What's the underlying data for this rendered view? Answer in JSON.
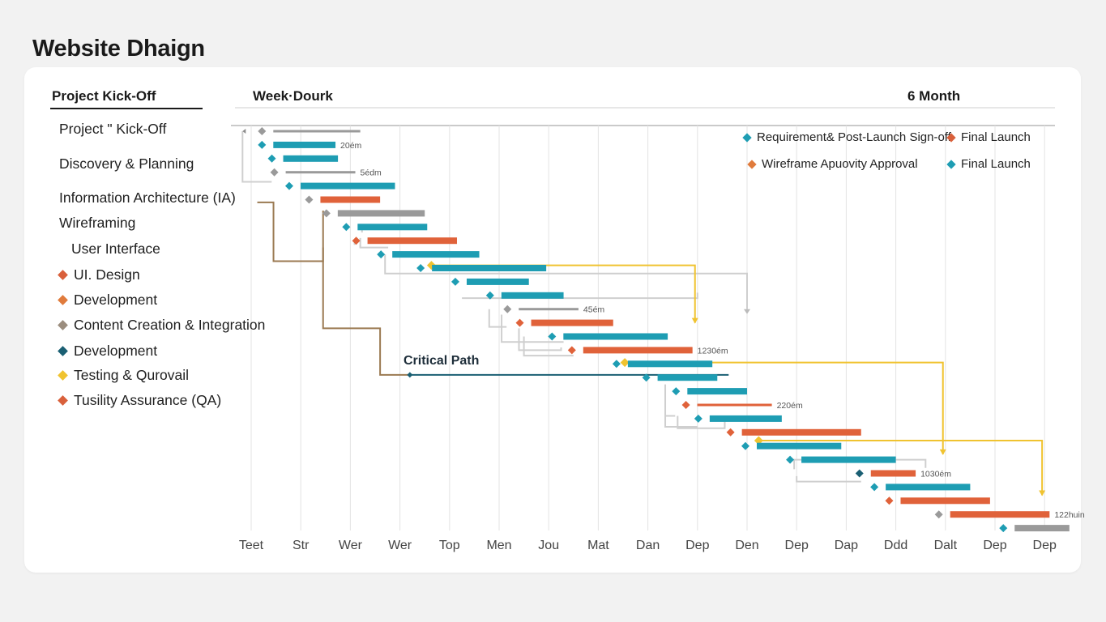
{
  "page": {
    "title": "Website Dhaign"
  },
  "panel": {
    "left_header": "Project Kick-Off",
    "col_header_left": "Week·Dourk",
    "col_header_right": "6 Month",
    "critical_path_label": "Critical Path"
  },
  "tasks": [
    {
      "label": "Project \" Kick-Off",
      "marker": null
    },
    {
      "label": "Discovery & Planning",
      "marker": null
    },
    {
      "label": "Information Architecture (IA)",
      "marker": null
    },
    {
      "label": "Wireframing",
      "marker": null
    },
    {
      "label": "User Interface",
      "marker": null
    },
    {
      "label": "UI. Design",
      "marker": "#d9603b"
    },
    {
      "label": "Development",
      "marker": "#e07b3c"
    },
    {
      "label": "Content Creation & Integration",
      "marker": "#9b8d7e"
    },
    {
      "label": "Development",
      "marker": "#1a5f73"
    },
    {
      "label": "Testing & Qurovail",
      "marker": "#f0c330"
    },
    {
      "label": "Tusility Assurance (QA)",
      "marker": "#d9603b"
    }
  ],
  "legend": [
    {
      "label": "Requirement& Post-Launch Sign-off",
      "color": "#1e9db3"
    },
    {
      "label": "Final Launch",
      "color": "#d9603b"
    },
    {
      "label": "Wireframe Apuovity Approval",
      "color": "#e07b3c"
    },
    {
      "label": "Final Launch",
      "color": "#1e9db3"
    }
  ],
  "colors": {
    "teal": "#1e9db3",
    "orange": "#e0623a",
    "gray": "#9a9a9a",
    "dark_teal": "#1a5f73",
    "yellow": "#f0c330",
    "brown": "#9b7a52"
  },
  "chart_data": {
    "type": "gantt",
    "title": "Website Dhaign",
    "x_unit": "week",
    "x_range": [
      0,
      17
    ],
    "x_tick_labels": [
      "Teet",
      "Str",
      "Wer",
      "Wer",
      "Top",
      "Men",
      "Jou",
      "Mat",
      "Dan",
      "Dep",
      "Den",
      "Dep",
      "Dap",
      "Ddd",
      "Dalt",
      "Dep",
      "Dep"
    ],
    "tasks": [
      {
        "start": 0.25,
        "end": 2.2,
        "color": "gray",
        "marker": "gray",
        "end_label": ""
      },
      {
        "start": 0.25,
        "end": 1.7,
        "color": "teal",
        "marker": "teal",
        "end_label": "20ém"
      },
      {
        "start": 0.45,
        "end": 1.75,
        "color": "teal",
        "marker": "teal",
        "end_label": ""
      },
      {
        "start": 0.5,
        "end": 2.1,
        "color": "gray",
        "marker": "gray",
        "end_label": "5édm"
      },
      {
        "start": 0.8,
        "end": 2.9,
        "color": "teal",
        "marker": "teal",
        "end_label": ""
      },
      {
        "start": 1.2,
        "end": 2.6,
        "color": "orange",
        "marker": "gray",
        "end_label": ""
      },
      {
        "start": 1.55,
        "end": 3.5,
        "color": "gray",
        "marker": "gray",
        "end_label": ""
      },
      {
        "start": 1.95,
        "end": 3.55,
        "color": "teal",
        "marker": "teal",
        "end_label": ""
      },
      {
        "start": 2.15,
        "end": 4.15,
        "color": "orange",
        "marker": "orange",
        "end_label": ""
      },
      {
        "start": 2.65,
        "end": 4.6,
        "color": "teal",
        "marker": "teal",
        "end_label": ""
      },
      {
        "start": 3.45,
        "end": 5.95,
        "color": "teal",
        "marker": "teal",
        "end_label": ""
      },
      {
        "start": 4.15,
        "end": 5.6,
        "color": "teal",
        "marker": "teal",
        "end_label": ""
      },
      {
        "start": 4.85,
        "end": 6.3,
        "color": "teal",
        "marker": "teal",
        "end_label": ""
      },
      {
        "start": 5.2,
        "end": 6.6,
        "color": "gray",
        "marker": "gray",
        "end_label": "45ém"
      },
      {
        "start": 5.45,
        "end": 7.3,
        "color": "orange",
        "marker": "orange",
        "end_label": ""
      },
      {
        "start": 6.1,
        "end": 8.4,
        "color": "teal",
        "marker": "teal",
        "end_label": ""
      },
      {
        "start": 6.5,
        "end": 8.9,
        "color": "orange",
        "marker": "orange",
        "end_label": "1230ém"
      },
      {
        "start": 7.4,
        "end": 9.3,
        "color": "teal",
        "marker": "teal",
        "end_label": ""
      },
      {
        "start": 8.0,
        "end": 9.4,
        "color": "teal",
        "marker": "teal",
        "end_label": ""
      },
      {
        "start": 8.6,
        "end": 10.0,
        "color": "teal",
        "marker": "teal",
        "end_label": ""
      },
      {
        "start": 8.8,
        "end": 10.5,
        "color": "orange",
        "marker": "orange",
        "end_label": "220ém"
      },
      {
        "start": 9.05,
        "end": 10.7,
        "color": "teal",
        "marker": "teal",
        "end_label": ""
      },
      {
        "start": 9.7,
        "end": 12.3,
        "color": "orange",
        "marker": "orange",
        "end_label": ""
      },
      {
        "start": 10.0,
        "end": 11.9,
        "color": "teal",
        "marker": "teal",
        "end_label": ""
      },
      {
        "start": 10.9,
        "end": 13.0,
        "color": "teal",
        "marker": "teal",
        "end_label": ""
      },
      {
        "start": 12.3,
        "end": 13.4,
        "color": "orange",
        "marker": "dark_teal",
        "end_label": "1030ém"
      },
      {
        "start": 12.6,
        "end": 14.5,
        "color": "teal",
        "marker": "teal",
        "end_label": ""
      },
      {
        "start": 12.9,
        "end": 14.9,
        "color": "orange",
        "marker": "orange",
        "end_label": ""
      },
      {
        "start": 13.9,
        "end": 16.1,
        "color": "orange",
        "marker": "gray",
        "end_label": "122huin"
      },
      {
        "start": 15.2,
        "end": 16.5,
        "color": "gray",
        "marker": "teal",
        "end_label": ""
      }
    ],
    "milestones": [
      {
        "x": 3.7,
        "color": "yellow"
      },
      {
        "x": 7.6,
        "color": "yellow"
      },
      {
        "x": 10.3,
        "color": "yellow"
      }
    ],
    "critical_path": {
      "label": "Critical Path",
      "start": 3.2,
      "end": 9.4
    }
  }
}
